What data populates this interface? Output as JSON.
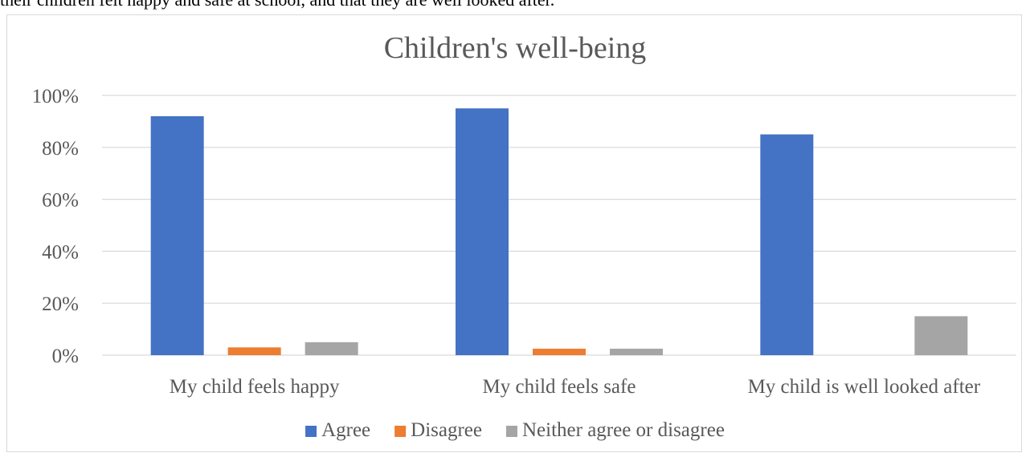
{
  "intro_text": "their children felt happy and safe at school, and that they are well looked after.",
  "chart_data": {
    "type": "bar",
    "title": "Children's well-being",
    "xlabel": "",
    "ylabel": "",
    "categories": [
      "My child feels happy",
      "My child feels safe",
      "My child is well looked after"
    ],
    "series": [
      {
        "name": "Agree",
        "color": "#4472c4",
        "values": [
          92,
          95,
          85
        ]
      },
      {
        "name": "Disagree",
        "color": "#ed7d31",
        "values": [
          3,
          2.5,
          0
        ]
      },
      {
        "name": "Neither agree or disagree",
        "color": "#a5a5a5",
        "values": [
          5,
          2.5,
          15
        ]
      }
    ],
    "yticks": [
      "0%",
      "20%",
      "40%",
      "60%",
      "80%",
      "100%"
    ],
    "ylim": [
      0,
      100
    ],
    "grid": true,
    "legend": "bottom"
  }
}
